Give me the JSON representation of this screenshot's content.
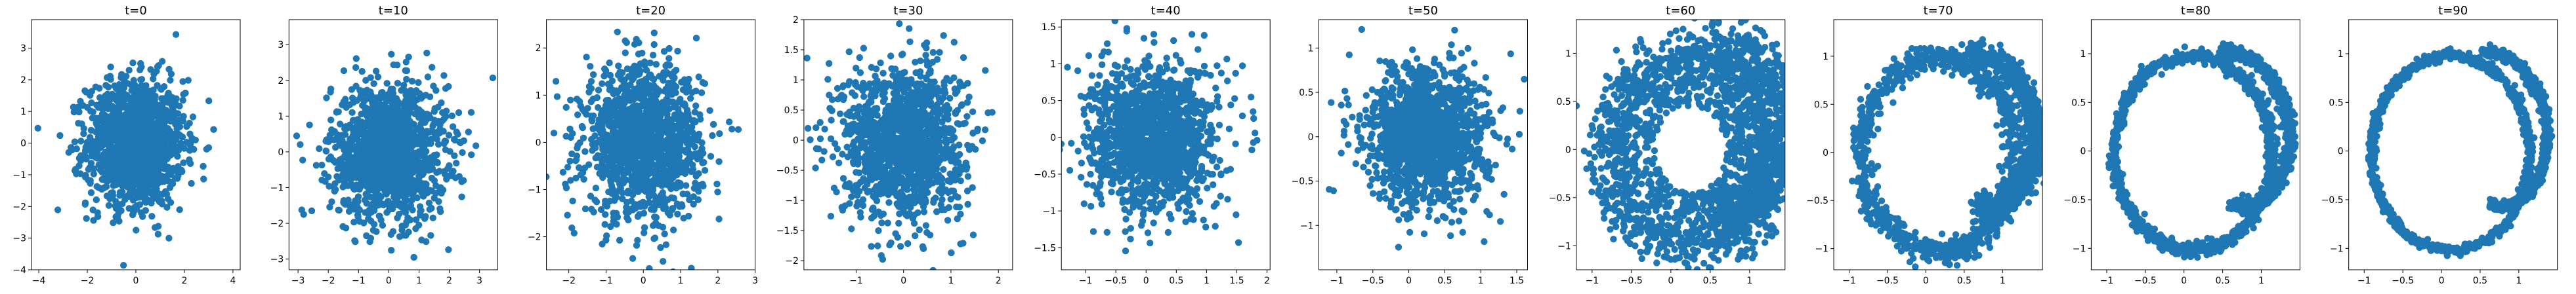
{
  "figure": {
    "marker_color": "#1f77b4",
    "axis_color": "#000000",
    "background": "#ffffff"
  },
  "chart_data": [
    {
      "type": "scatter",
      "title": "t=0",
      "shape": "gaussian",
      "center": [
        0.0,
        0.0
      ],
      "spread": [
        1.0,
        1.0
      ],
      "xlim": [
        -4.3,
        4.3
      ],
      "ylim": [
        -4.0,
        3.9
      ],
      "xticks": [
        -4,
        -2,
        0,
        2,
        4
      ],
      "yticks": [
        -4,
        -3,
        -2,
        -1,
        0,
        1,
        2,
        3
      ]
    },
    {
      "type": "scatter",
      "title": "t=10",
      "shape": "gaussian",
      "center": [
        0.0,
        0.0
      ],
      "spread": [
        0.95,
        0.95
      ],
      "xlim": [
        -3.3,
        3.6
      ],
      "ylim": [
        -3.3,
        3.7
      ],
      "xticks": [
        -3,
        -2,
        -1,
        0,
        1,
        2,
        3
      ],
      "yticks": [
        -3,
        -2,
        -1,
        0,
        1,
        2,
        3
      ]
    },
    {
      "type": "scatter",
      "title": "t=20",
      "shape": "gaussian",
      "center": [
        0.0,
        0.0
      ],
      "spread": [
        0.78,
        0.78
      ],
      "xlim": [
        -2.6,
        3.0
      ],
      "ylim": [
        -2.7,
        2.6
      ],
      "xticks": [
        -2,
        -1,
        0,
        1,
        2,
        3
      ],
      "yticks": [
        -2,
        -1,
        0,
        1,
        2
      ]
    },
    {
      "type": "scatter",
      "title": "t=30",
      "shape": "gaussian",
      "center": [
        0.0,
        0.0
      ],
      "spread": [
        0.63,
        0.63
      ],
      "xlim": [
        -2.1,
        2.3
      ],
      "ylim": [
        -2.15,
        2.0
      ],
      "xticks": [
        -1,
        0,
        1,
        2
      ],
      "yticks": [
        -2.0,
        -1.5,
        -1.0,
        -0.5,
        0.0,
        0.5,
        1.0,
        1.5,
        2.0
      ]
    },
    {
      "type": "scatter",
      "title": "t=40",
      "shape": "gaussian",
      "center": [
        0.12,
        0.0
      ],
      "spread": [
        0.52,
        0.5
      ],
      "xlim": [
        -1.4,
        2.05
      ],
      "ylim": [
        -1.8,
        1.6
      ],
      "xticks": [
        -1.0,
        -0.5,
        0.0,
        0.5,
        1.0,
        1.5,
        2.0
      ],
      "yticks": [
        -1.5,
        -1.0,
        -0.5,
        0.0,
        0.5,
        1.0,
        1.5
      ]
    },
    {
      "type": "scatter",
      "title": "t=50",
      "shape": "gaussian",
      "center": [
        0.25,
        0.0
      ],
      "spread": [
        0.42,
        0.38
      ],
      "xlim": [
        -1.25,
        1.65
      ],
      "ylim": [
        -1.5,
        1.32
      ],
      "xticks": [
        -1.0,
        -0.5,
        0.0,
        0.5,
        1.0,
        1.5
      ],
      "yticks": [
        -1.0,
        -0.5,
        0.0,
        0.5,
        1.0
      ]
    },
    {
      "type": "scatter",
      "title": "t=60",
      "shape": "blurred_moons",
      "center": [
        0.2,
        0.0
      ],
      "spread": [
        0.0,
        0.0
      ],
      "xlim": [
        -1.2,
        1.45
      ],
      "ylim": [
        -1.25,
        1.35
      ],
      "xticks": [
        -1.0,
        -0.5,
        0.0,
        0.5,
        1.0
      ],
      "yticks": [
        -1.0,
        -0.5,
        0.0,
        0.5,
        1.0
      ]
    },
    {
      "type": "scatter",
      "title": "t=70",
      "shape": "noisy_moons",
      "center": [
        0.15,
        0.0
      ],
      "spread": [
        0.0,
        0.0
      ],
      "xlim": [
        -1.2,
        1.52
      ],
      "ylim": [
        -1.22,
        1.38
      ],
      "xticks": [
        -1.0,
        -0.5,
        0.0,
        0.5,
        1.0
      ],
      "yticks": [
        -1.0,
        -0.5,
        0.0,
        0.5,
        1.0
      ]
    },
    {
      "type": "scatter",
      "title": "t=80",
      "shape": "moons",
      "center": [
        0.1,
        0.0
      ],
      "spread": [
        0.0,
        0.0
      ],
      "xlim": [
        -1.2,
        1.5
      ],
      "ylim": [
        -1.22,
        1.35
      ],
      "xticks": [
        -1.0,
        -0.5,
        0.0,
        0.5,
        1.0
      ],
      "yticks": [
        -1.0,
        -0.5,
        0.0,
        0.5,
        1.0
      ]
    },
    {
      "type": "scatter",
      "title": "t=90",
      "shape": "moons_sharp",
      "center": [
        0.1,
        0.0
      ],
      "spread": [
        0.0,
        0.0
      ],
      "xlim": [
        -1.2,
        1.5
      ],
      "ylim": [
        -1.22,
        1.35
      ],
      "xticks": [
        -1.0,
        -0.5,
        0.0,
        0.5,
        1.0
      ],
      "yticks": [
        -1.0,
        -0.5,
        0.0,
        0.5,
        1.0
      ]
    }
  ]
}
